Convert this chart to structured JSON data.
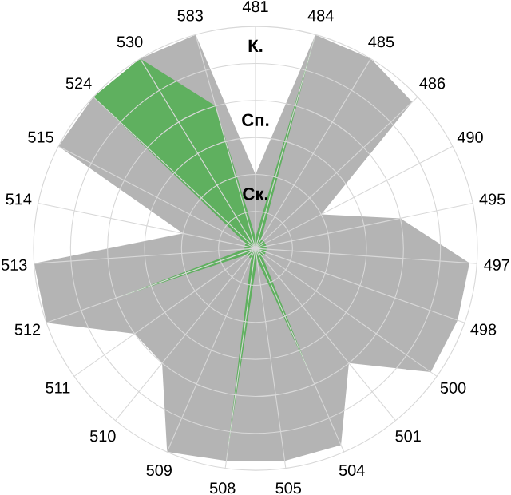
{
  "chart_data": {
    "type": "radar",
    "categories": [
      "481",
      "484",
      "485",
      "486",
      "490",
      "495",
      "497",
      "498",
      "500",
      "501",
      "504",
      "505",
      "508",
      "509",
      "510",
      "511",
      "512",
      "513",
      "514",
      "515",
      "524",
      "530",
      "583"
    ],
    "series": [
      {
        "color": "#b4b4b4",
        "values": [
          1.0,
          3.0,
          3.0,
          2.9,
          1.0,
          2.0,
          2.9,
          2.9,
          2.9,
          2.0,
          2.9,
          2.9,
          2.9,
          3.0,
          2.0,
          2.0,
          3.0,
          3.0,
          1.0,
          3.0,
          3.0,
          3.0,
          3.0
        ]
      },
      {
        "color": "#5fb05f",
        "values": [
          0.15,
          3.0,
          0.15,
          0.15,
          0.15,
          0.15,
          0.15,
          0.15,
          0.15,
          0.15,
          1.9,
          0.15,
          2.9,
          0.15,
          0.15,
          0.15,
          2.0,
          0.15,
          0.15,
          0.15,
          3.0,
          3.0,
          2.0
        ]
      }
    ],
    "ylim": [
      0,
      3
    ],
    "yticks": [
      {
        "value": 1,
        "label": "Ск."
      },
      {
        "value": 2,
        "label": "Сп."
      },
      {
        "value": 3,
        "label": "К."
      }
    ],
    "grid": true
  }
}
